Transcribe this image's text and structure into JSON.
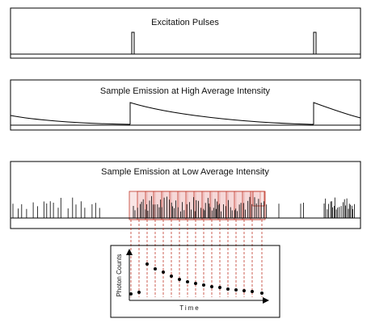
{
  "panels": {
    "excitation": {
      "title": "Excitation Pulses"
    },
    "high": {
      "title": "Sample Emission at High Average Intensity"
    },
    "low": {
      "title": "Sample Emission at Low Average Intensity"
    }
  },
  "decay_plot": {
    "x_label": "Time",
    "y_label": "Photon Counts"
  },
  "colors": {
    "line": "#000000",
    "bin_fill": "#f3cccc",
    "bin_stroke": "#c0392b",
    "guide": "#c0392b"
  }
}
